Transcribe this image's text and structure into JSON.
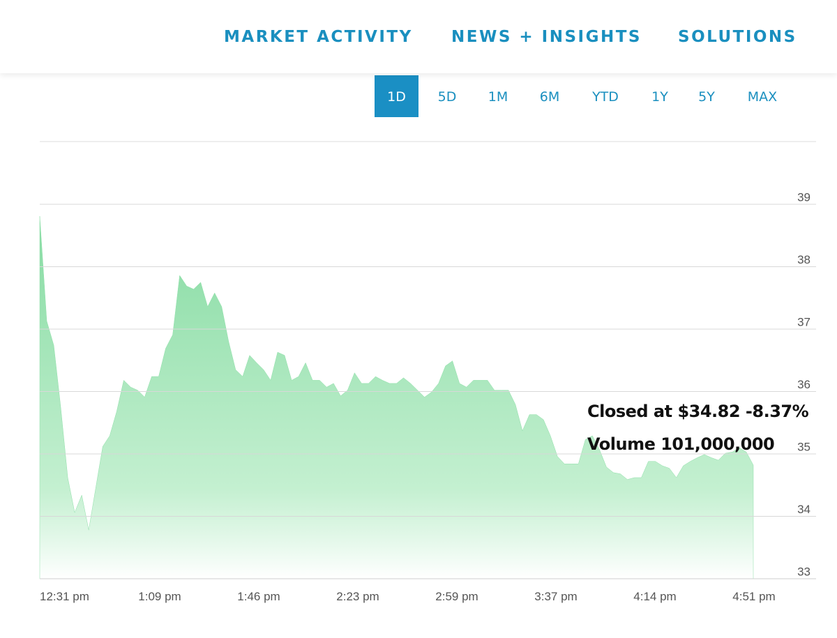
{
  "nav": {
    "items": [
      "MARKET ACTIVITY",
      "NEWS + INSIGHTS",
      "SOLUTIONS"
    ]
  },
  "ranges": {
    "items": [
      "1D",
      "5D",
      "1M",
      "6M",
      "YTD",
      "1Y",
      "5Y",
      "MAX"
    ],
    "selected": "1D"
  },
  "chart_data": {
    "type": "area",
    "color": "#8fdfa9",
    "x_labels": [
      "12:31 pm",
      "1:09 pm",
      "1:46 pm",
      "2:23 pm",
      "2:59 pm",
      "3:37 pm",
      "4:14 pm",
      "4:51 pm"
    ],
    "values": [
      38.81,
      37.13,
      36.74,
      35.74,
      34.62,
      34.06,
      34.34,
      33.78,
      34.45,
      35.12,
      35.29,
      35.68,
      36.18,
      36.07,
      36.02,
      35.91,
      36.24,
      36.24,
      36.69,
      36.91,
      37.86,
      37.69,
      37.64,
      37.75,
      37.36,
      37.58,
      37.36,
      36.8,
      36.35,
      36.24,
      36.58,
      36.46,
      36.35,
      36.18,
      36.63,
      36.58,
      36.18,
      36.24,
      36.46,
      36.18,
      36.18,
      36.07,
      36.13,
      35.93,
      36.02,
      36.3,
      36.13,
      36.13,
      36.24,
      36.18,
      36.13,
      36.13,
      36.22,
      36.13,
      36.02,
      35.91,
      35.99,
      36.13,
      36.41,
      36.49,
      36.13,
      36.07,
      36.18,
      36.18,
      36.18,
      36.02,
      36.02,
      36.02,
      35.79,
      35.37,
      35.63,
      35.63,
      35.55,
      35.29,
      34.96,
      34.84,
      34.84,
      34.84,
      35.23,
      35.29,
      35.07,
      34.79,
      34.7,
      34.68,
      34.59,
      34.62,
      34.62,
      34.88,
      34.88,
      34.81,
      34.77,
      34.62,
      34.81,
      34.88,
      34.94,
      34.99,
      34.94,
      34.9,
      35.01,
      35.03,
      35.1,
      35.03,
      34.82
    ],
    "ylim": [
      33,
      40
    ],
    "yticks": [
      33,
      34,
      35,
      36,
      37,
      38,
      39
    ],
    "grid": true,
    "annotations": [
      "Closed at $34.82 -8.37%",
      "Volume 101,000,000"
    ]
  }
}
